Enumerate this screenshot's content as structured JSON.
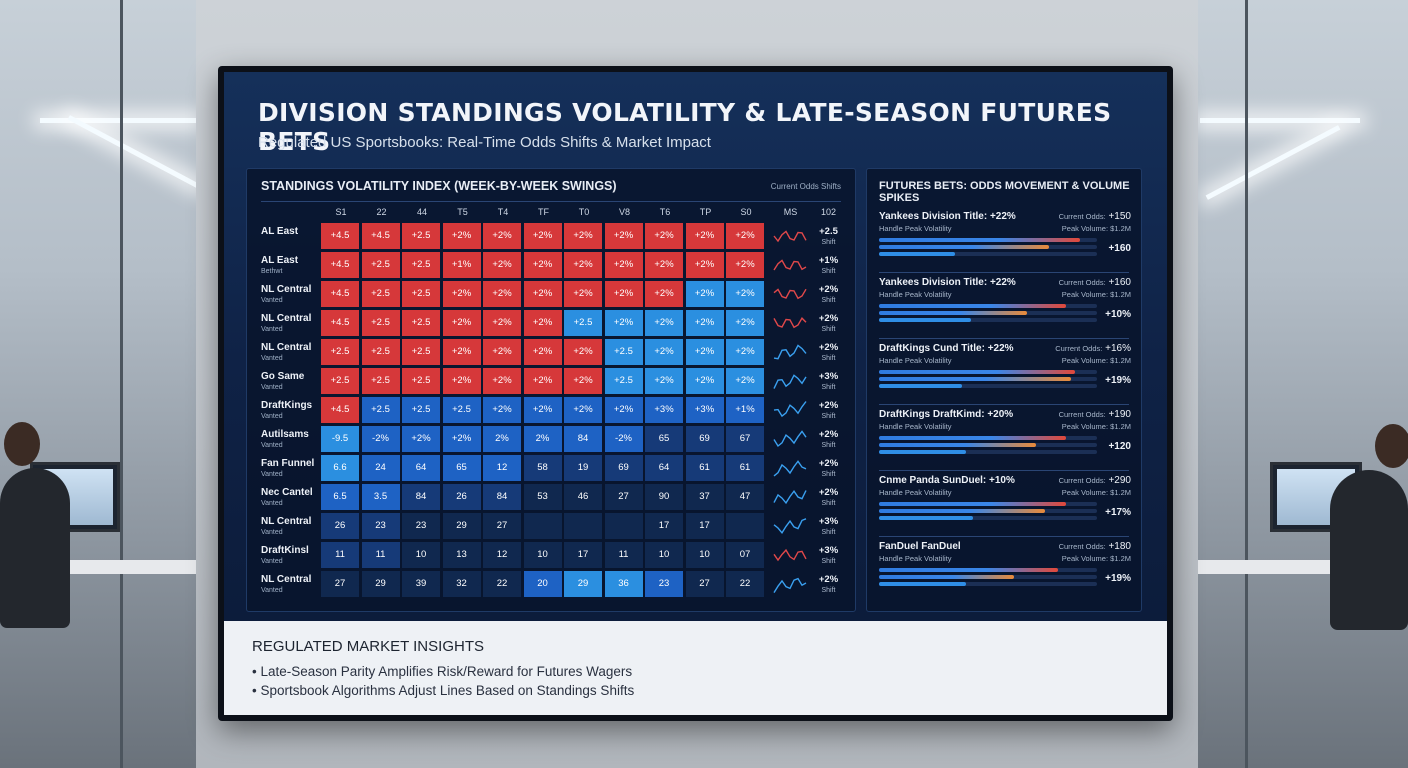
{
  "header": {
    "title": "DIVISION STANDINGS VOLATILITY & LATE-SEASON FUTURES BETS",
    "subtitle": "Regulated US Sportsbooks: Real-Time Odds Shifts & Market Impact"
  },
  "volatility": {
    "title": "STANDINGS VOLATILITY INDEX (WEEK-BY-WEEK SWINGS)",
    "legend": "Current Odds Shifts",
    "columns": [
      "S1",
      "22",
      "44",
      "T5",
      "T4",
      "TF",
      "T0",
      "V8",
      "T6",
      "TP",
      "S0",
      "MS",
      "102"
    ],
    "colors": {
      "red": "#d6383a",
      "lightblue": "#2b8fe0",
      "blue": "#1e62c4",
      "navy": "#163a78",
      "darknavy": "#10284f"
    },
    "rows": [
      {
        "label": "AL East",
        "sublabel": "",
        "cells": [
          "+4.5",
          "+4.5",
          "+2.5",
          "+2%",
          "+2%",
          "+2%",
          "+2%",
          "+2%",
          "+2%",
          "+2%",
          "+2%"
        ],
        "tones": [
          "r",
          "r",
          "r",
          "r",
          "r",
          "r",
          "r",
          "r",
          "r",
          "r",
          "r"
        ],
        "spark": "red",
        "shift": "+2.5",
        "shift_label": "Shift"
      },
      {
        "label": "AL East",
        "sublabel": "Bethwt",
        "cells": [
          "+4.5",
          "+2.5",
          "+2.5",
          "+1%",
          "+2%",
          "+2%",
          "+2%",
          "+2%",
          "+2%",
          "+2%",
          "+2%"
        ],
        "tones": [
          "r",
          "r",
          "r",
          "r",
          "r",
          "r",
          "r",
          "r",
          "r",
          "r",
          "r"
        ],
        "spark": "red",
        "shift": "+1%",
        "shift_label": "Shift"
      },
      {
        "label": "NL Central",
        "sublabel": "Vanted",
        "cells": [
          "+4.5",
          "+2.5",
          "+2.5",
          "+2%",
          "+2%",
          "+2%",
          "+2%",
          "+2%",
          "+2%",
          "+2%",
          "+2%"
        ],
        "tones": [
          "r",
          "r",
          "r",
          "r",
          "r",
          "r",
          "r",
          "r",
          "r",
          "l",
          "l"
        ],
        "spark": "red",
        "shift": "+2%",
        "shift_label": "Shift"
      },
      {
        "label": "NL Central",
        "sublabel": "Vanted",
        "cells": [
          "+4.5",
          "+2.5",
          "+2.5",
          "+2%",
          "+2%",
          "+2%",
          "+2.5",
          "+2%",
          "+2%",
          "+2%",
          "+2%"
        ],
        "tones": [
          "r",
          "r",
          "r",
          "r",
          "r",
          "r",
          "l",
          "l",
          "l",
          "l",
          "l"
        ],
        "spark": "red",
        "shift": "+2%",
        "shift_label": "Shift"
      },
      {
        "label": "NL Central",
        "sublabel": "Vanted",
        "cells": [
          "+2.5",
          "+2.5",
          "+2.5",
          "+2%",
          "+2%",
          "+2%",
          "+2%",
          "+2.5",
          "+2%",
          "+2%",
          "+2%"
        ],
        "tones": [
          "r",
          "r",
          "r",
          "r",
          "r",
          "r",
          "r",
          "l",
          "l",
          "l",
          "l"
        ],
        "spark": "blue",
        "shift": "+2%",
        "shift_label": "Shift"
      },
      {
        "label": "Go Same",
        "sublabel": "Vanted",
        "cells": [
          "+2.5",
          "+2.5",
          "+2.5",
          "+2%",
          "+2%",
          "+2%",
          "+2%",
          "+2.5",
          "+2%",
          "+2%",
          "+2%"
        ],
        "tones": [
          "r",
          "r",
          "r",
          "r",
          "r",
          "r",
          "r",
          "l",
          "l",
          "l",
          "l"
        ],
        "spark": "blue",
        "shift": "+3%",
        "shift_label": "Shift"
      },
      {
        "label": "DraftKings",
        "sublabel": "Vanted",
        "cells": [
          "+4.5",
          "+2.5",
          "+2.5",
          "+2.5",
          "+2%",
          "+2%",
          "+2%",
          "+2%",
          "+3%",
          "+3%",
          "+1%"
        ],
        "tones": [
          "r",
          "b",
          "b",
          "b",
          "b",
          "b",
          "b",
          "b",
          "b",
          "b",
          "b"
        ],
        "spark": "blue",
        "shift": "+2%",
        "shift_label": "Shift"
      },
      {
        "label": "Autilsams",
        "sublabel": "Vanted",
        "cells": [
          "-9.5",
          "-2%",
          "+2%",
          "+2%",
          "2%",
          "2%",
          "84",
          "-2%",
          "65",
          "69",
          "67"
        ],
        "tones": [
          "l",
          "b",
          "b",
          "b",
          "b",
          "b",
          "b",
          "b",
          "n",
          "n",
          "n"
        ],
        "spark": "blue",
        "shift": "+2%",
        "shift_label": "Shift"
      },
      {
        "label": "Fan Funnel",
        "sublabel": "Vanted",
        "cells": [
          "6.6",
          "24",
          "64",
          "65",
          "12",
          "58",
          "19",
          "69",
          "64",
          "61",
          "61"
        ],
        "tones": [
          "l",
          "b",
          "b",
          "b",
          "b",
          "n",
          "n",
          "n",
          "n",
          "n",
          "n"
        ],
        "spark": "blue",
        "shift": "+2%",
        "shift_label": "Shift"
      },
      {
        "label": "Nec Cantel",
        "sublabel": "Vanted",
        "cells": [
          "6.5",
          "3.5",
          "84",
          "26",
          "84",
          "53",
          "46",
          "27",
          "90",
          "37",
          "47"
        ],
        "tones": [
          "b",
          "b",
          "n",
          "n",
          "n",
          "d",
          "d",
          "d",
          "d",
          "d",
          "d"
        ],
        "spark": "blue",
        "shift": "+2%",
        "shift_label": "Shift"
      },
      {
        "label": "NL Central",
        "sublabel": "Vanted",
        "cells": [
          "26",
          "23",
          "23",
          "29",
          "27",
          "",
          "",
          "",
          "17",
          "17",
          ""
        ],
        "tones": [
          "n",
          "n",
          "d",
          "d",
          "d",
          "d",
          "d",
          "d",
          "d",
          "d",
          "d"
        ],
        "spark": "blue",
        "shift": "+3%",
        "shift_label": "Shift"
      },
      {
        "label": "DraftKinsl",
        "sublabel": "Vanted",
        "cells": [
          "11",
          "11",
          "10",
          "13",
          "12",
          "10",
          "17",
          "11",
          "10",
          "10",
          "07"
        ],
        "tones": [
          "n",
          "n",
          "d",
          "d",
          "d",
          "d",
          "d",
          "d",
          "d",
          "d",
          "d"
        ],
        "spark": "red",
        "shift": "+3%",
        "shift_label": "Shift"
      },
      {
        "label": "NL Central",
        "sublabel": "Vanted",
        "cells": [
          "27",
          "29",
          "39",
          "32",
          "22",
          "20",
          "29",
          "36",
          "23",
          "27",
          "22"
        ],
        "tones": [
          "d",
          "d",
          "d",
          "d",
          "d",
          "b",
          "l",
          "l",
          "b",
          "d",
          "d"
        ],
        "spark": "blue",
        "shift": "+2%",
        "shift_label": "Shift"
      }
    ]
  },
  "futures": {
    "title": "FUTURES BETS: ODDS MOVEMENT & VOLUME SPIKES",
    "items": [
      {
        "name": "Yankees Division Title: +22%",
        "sub": "Handle Peak Volatility",
        "odds_label": "Current Odds:",
        "odds": "+150",
        "vol_label": "Peak Volume: $1.2M",
        "pct": "+160",
        "bars": [
          0.92,
          0.78,
          0.35
        ]
      },
      {
        "name": "Yankees Division Title: +22%",
        "sub": "Handle Peak Volatility",
        "odds_label": "Current Odds:",
        "odds": "+160",
        "vol_label": "Peak Volume: $1.2M",
        "pct": "+10%",
        "bars": [
          0.86,
          0.68,
          0.42
        ]
      },
      {
        "name": "DraftKings Cund Title: +22%",
        "sub": "Handle Peak Volatility",
        "odds_label": "Current Odds:",
        "odds": "+16%",
        "vol_label": "Peak Volume: $1.2M",
        "pct": "+19%",
        "bars": [
          0.9,
          0.88,
          0.38
        ]
      },
      {
        "name": "DraftKings DraftKimd: +20%",
        "sub": "Handle Peak Volatility",
        "odds_label": "Current Odds:",
        "odds": "+190",
        "vol_label": "Peak Volume: $1.2M",
        "pct": "+120",
        "bars": [
          0.86,
          0.72,
          0.4
        ]
      },
      {
        "name": "Cnme Panda SunDuel: +10%",
        "sub": "Handle Peak Volatility",
        "odds_label": "Current Odds:",
        "odds": "+290",
        "vol_label": "Peak Volume: $1.2M",
        "pct": "+17%",
        "bars": [
          0.86,
          0.76,
          0.43
        ]
      },
      {
        "name": "FanDuel FanDuel",
        "sub": "Handle Peak Volatility",
        "odds_label": "Current Odds:",
        "odds": "+180",
        "vol_label": "Peak Volume: $1.2M",
        "pct": "+19%",
        "bars": [
          0.82,
          0.62,
          0.4
        ]
      }
    ]
  },
  "insights": {
    "title": "REGULATED MARKET INSIGHTS",
    "items": [
      "• Late-Season Parity Amplifies Risk/Reward for Futures Wagers",
      "• Sportsbook Algorithms Adjust Lines Based on Standings Shifts"
    ]
  }
}
